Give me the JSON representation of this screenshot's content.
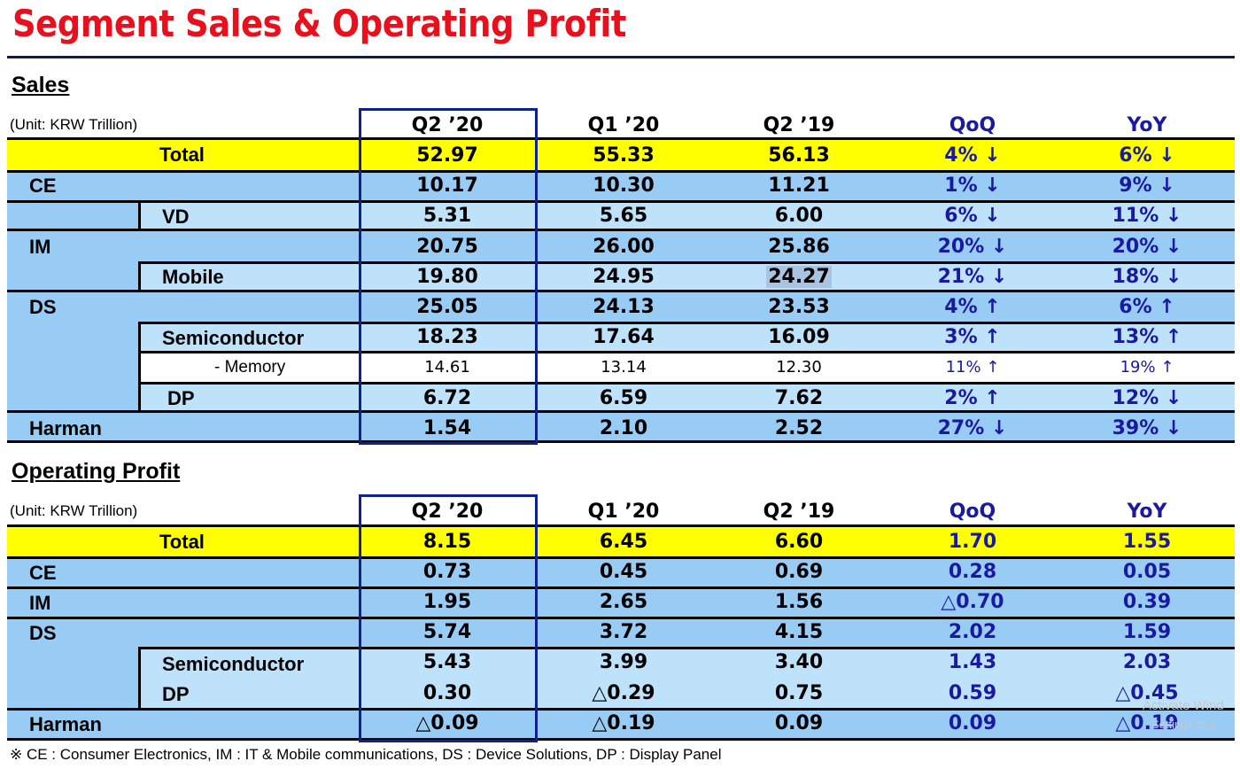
{
  "title": "Segment Sales & Operating Profit",
  "columns": [
    "Q2 ’20",
    "Q1 ’20",
    "Q2 ’19",
    "QoQ",
    "YoY"
  ],
  "sales": {
    "section_title": "Sales",
    "unit": "(Unit: KRW Trillion)",
    "rows": [
      {
        "label": "Total",
        "values": [
          "52.97",
          "55.33",
          "56.13",
          "4% ↓",
          "6% ↓"
        ]
      },
      {
        "label": "CE",
        "values": [
          "10.17",
          "10.30",
          "11.21",
          "1% ↓",
          "9% ↓"
        ]
      },
      {
        "label": "VD",
        "values": [
          "5.31",
          "5.65",
          "6.00",
          "6% ↓",
          "11% ↓"
        ]
      },
      {
        "label": "IM",
        "values": [
          "20.75",
          "26.00",
          "25.86",
          "20% ↓",
          "20% ↓"
        ]
      },
      {
        "label": "Mobile",
        "values": [
          "19.80",
          "24.95",
          "24.27",
          "21% ↓",
          "18% ↓"
        ]
      },
      {
        "label": "DS",
        "values": [
          "25.05",
          "24.13",
          "23.53",
          "4% ↑",
          "6% ↑"
        ]
      },
      {
        "label": "Semiconductor",
        "values": [
          "18.23",
          "17.64",
          "16.09",
          "3% ↑",
          "13% ↑"
        ]
      },
      {
        "label": "- Memory",
        "values": [
          "14.61",
          "13.14",
          "12.30",
          "11% ↑",
          "19% ↑"
        ]
      },
      {
        "label": "DP",
        "values": [
          "6.72",
          "6.59",
          "7.62",
          "2% ↑",
          "12% ↓"
        ]
      },
      {
        "label": "Harman",
        "values": [
          "1.54",
          "2.10",
          "2.52",
          "27% ↓",
          "39% ↓"
        ]
      }
    ]
  },
  "op": {
    "section_title": "Operating Profit",
    "unit": "(Unit: KRW Trillion)",
    "rows": [
      {
        "label": "Total",
        "values": [
          "8.15",
          "6.45",
          "6.60",
          "1.70",
          "1.55"
        ]
      },
      {
        "label": "CE",
        "values": [
          "0.73",
          "0.45",
          "0.69",
          "0.28",
          "0.05"
        ]
      },
      {
        "label": "IM",
        "values": [
          "1.95",
          "2.65",
          "1.56",
          "△0.70",
          "0.39"
        ]
      },
      {
        "label": "DS",
        "values": [
          "5.74",
          "3.72",
          "4.15",
          "2.02",
          "1.59"
        ]
      },
      {
        "label": "Semiconductor",
        "values": [
          "5.43",
          "3.99",
          "3.40",
          "1.43",
          "2.03"
        ]
      },
      {
        "label": "DP",
        "values": [
          "0.30",
          "△0.29",
          "0.75",
          "0.59",
          "△0.45"
        ]
      },
      {
        "label": "Harman",
        "values": [
          "△0.09",
          "△0.19",
          "0.09",
          "0.09",
          "△0.19"
        ]
      }
    ]
  },
  "footnote": "※ CE : Consumer Electronics,  IM : IT & Mobile communications,  DS : Device Solutions,  DP : Display Panel",
  "watermark": {
    "line1": "Activate Wind",
    "line2": "Settings to a"
  }
}
